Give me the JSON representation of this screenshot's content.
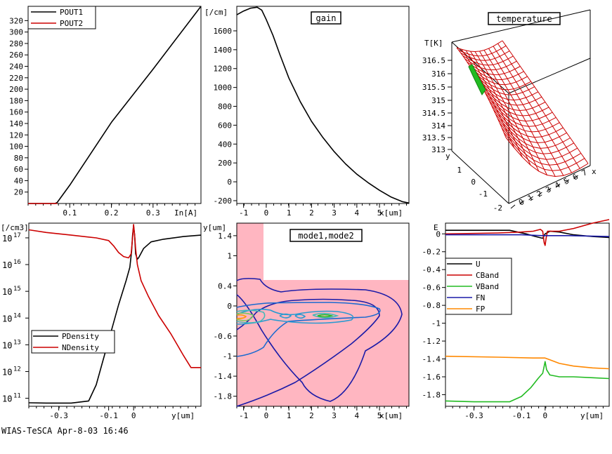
{
  "footer": "WIAS-TeSCA Apr-8-03 16:46",
  "colors": {
    "black": "#000000",
    "red": "#cc0000",
    "green": "#22bb22",
    "blue": "#1a1aa8",
    "orange": "#ff8800",
    "pink": "#ffb6c1"
  },
  "chart_data": [
    {
      "id": "power",
      "type": "line",
      "xlabel": "In[A]",
      "ylabel": "",
      "title": "",
      "xlim": [
        0,
        0.415
      ],
      "ylim": [
        0,
        345
      ],
      "xticks": [
        0.1,
        0.2,
        0.3
      ],
      "xtick_labels": [
        "0.1",
        "0.2",
        "0.3"
      ],
      "yticks": [
        20,
        40,
        60,
        80,
        100,
        120,
        140,
        160,
        180,
        200,
        220,
        240,
        260,
        280,
        300,
        320
      ],
      "ytick_labels": [
        "20",
        "40",
        "60",
        "80",
        "100",
        "120",
        "140",
        "160",
        "180",
        "200",
        "220",
        "240",
        "260",
        "280",
        "300",
        "320"
      ],
      "legend": "top-left",
      "series": [
        {
          "name": "POUT1",
          "color": "#000000",
          "x": [
            0,
            0.065,
            0.07,
            0.1,
            0.2,
            0.3,
            0.415
          ],
          "y": [
            0,
            0,
            2,
            32,
            142,
            235,
            345
          ]
        },
        {
          "name": "POUT2",
          "color": "#cc0000",
          "x": [
            0,
            0.07
          ],
          "y": [
            0,
            0
          ]
        }
      ]
    },
    {
      "id": "gain",
      "type": "line",
      "title": "gain",
      "xlabel": "x[um]",
      "ylabel": "[/cm]",
      "xlim": [
        -1.3,
        6.3
      ],
      "ylim": [
        -230,
        1860
      ],
      "xticks": [
        -1,
        0,
        1,
        2,
        3,
        4,
        5
      ],
      "xtick_labels": [
        "-1",
        "0",
        "1",
        "2",
        "3",
        "4",
        "5"
      ],
      "yticks": [
        -200,
        0,
        200,
        400,
        600,
        800,
        1000,
        1200,
        1400,
        1600
      ],
      "ytick_labels": [
        "-200",
        "0",
        "200",
        "400",
        "600",
        "800",
        "1000",
        "1200",
        "1400",
        "1600"
      ],
      "series": [
        {
          "name": "",
          "color": "#000000",
          "x": [
            -1.3,
            -1.0,
            -0.7,
            -0.4,
            -0.2,
            0.0,
            0.3,
            0.6,
            1.0,
            1.5,
            2.0,
            2.5,
            3.0,
            3.5,
            4.0,
            4.5,
            5.0,
            5.5,
            6.0,
            6.3
          ],
          "y": [
            1770,
            1810,
            1840,
            1850,
            1820,
            1720,
            1550,
            1350,
            1100,
            850,
            640,
            470,
            320,
            190,
            80,
            -10,
            -90,
            -160,
            -210,
            -225
          ]
        }
      ]
    },
    {
      "id": "temperature",
      "type": "surface3d",
      "title": "temperature",
      "zlabel": "T[K]",
      "ylabel": "y",
      "xlabel": "x",
      "zticks": [
        "313",
        "313.5",
        "314",
        "314.5",
        "315",
        "315.5",
        "316",
        "316.5"
      ],
      "xticks": [
        "0",
        "1",
        "2",
        "3",
        "4",
        "5",
        "6",
        "7"
      ],
      "yticks": [
        "-2",
        "-1",
        "0",
        "1"
      ],
      "zlim": [
        313,
        316.5
      ],
      "x_range": [
        -1,
        7.5
      ],
      "y_range": [
        -2,
        1.5
      ]
    },
    {
      "id": "density",
      "type": "line",
      "xlabel": "y[um]",
      "ylabel": "[/cm3]",
      "title": "",
      "yscale": "log",
      "xlim": [
        -0.42,
        0.27
      ],
      "ylim": [
        10.7,
        17.55
      ],
      "xticks": [
        -0.3,
        -0.1,
        0
      ],
      "xtick_labels": [
        "-0.3",
        "-0.1",
        "0"
      ],
      "yticks": [
        11,
        12,
        13,
        14,
        15,
        16,
        17
      ],
      "ytick_base": "10",
      "ytick_exponents": [
        "11",
        "12",
        "13",
        "14",
        "15",
        "16",
        "17"
      ],
      "legend": "bottom-left",
      "series": [
        {
          "name": "PDensity",
          "color": "#000000",
          "x": [
            -0.42,
            -0.35,
            -0.25,
            -0.18,
            -0.15,
            -0.12,
            -0.09,
            -0.06,
            -0.03,
            -0.015,
            -0.008,
            -0.004,
            0.0,
            0.004,
            0.008,
            0.015,
            0.02,
            0.04,
            0.07,
            0.12,
            0.2,
            0.27
          ],
          "y": [
            10.83,
            10.82,
            10.82,
            10.9,
            11.5,
            12.5,
            13.5,
            14.5,
            15.4,
            15.9,
            16.5,
            17.1,
            17.45,
            17.1,
            16.4,
            16.2,
            16.25,
            16.6,
            16.85,
            16.95,
            17.05,
            17.1
          ]
        },
        {
          "name": "NDensity",
          "color": "#cc0000",
          "x": [
            -0.42,
            -0.35,
            -0.25,
            -0.15,
            -0.1,
            -0.08,
            -0.06,
            -0.04,
            -0.02,
            -0.01,
            -0.004,
            0.0,
            0.004,
            0.008,
            0.015,
            0.03,
            0.06,
            0.1,
            0.15,
            0.2,
            0.23,
            0.27
          ],
          "y": [
            17.3,
            17.2,
            17.1,
            17.0,
            16.9,
            16.7,
            16.45,
            16.3,
            16.25,
            16.4,
            17.0,
            17.5,
            17.1,
            16.6,
            16.0,
            15.4,
            14.8,
            14.1,
            13.4,
            12.6,
            12.15,
            12.15
          ]
        }
      ]
    },
    {
      "id": "modes",
      "type": "contour",
      "title": "mode1,mode2",
      "xlabel": "x[um]",
      "ylabel": "y[um]",
      "xlim": [
        -1.3,
        6.3
      ],
      "ylim": [
        -2.0,
        1.65
      ],
      "xticks": [
        -1,
        0,
        1,
        2,
        3,
        4,
        5
      ],
      "xtick_labels": [
        "-1",
        "0",
        "1",
        "2",
        "3",
        "4",
        "5"
      ],
      "yticks": [
        1.4,
        1,
        0.4,
        0,
        -0.6,
        -1,
        -1.4,
        -1.8
      ],
      "ytick_labels": [
        "1.4",
        "1",
        "0.4",
        "0",
        "-0.6",
        "-1",
        "-1.4",
        "-1.8"
      ]
    },
    {
      "id": "bands",
      "type": "line",
      "xlabel": "y[um]",
      "ylabel": "E",
      "title": "",
      "xlim": [
        -0.42,
        0.27
      ],
      "ylim": [
        -1.93,
        0.12
      ],
      "xticks": [
        -0.3,
        -0.1,
        0
      ],
      "xtick_labels": [
        "-0.3",
        "-0.1",
        "0"
      ],
      "yticks": [
        0,
        -0.2,
        -0.4,
        -0.6,
        -0.8,
        -1,
        -1.2,
        -1.4,
        -1.6,
        -1.8
      ],
      "ytick_labels": [
        "0",
        "-0.2",
        "-0.4",
        "-0.6",
        "-0.8",
        "-1",
        "-1.2",
        "-1.4",
        "-1.6",
        "-1.8"
      ],
      "legend": "left",
      "series": [
        {
          "name": "U",
          "color": "#000000",
          "x": [
            -0.42,
            -0.2,
            -0.15,
            -0.08,
            -0.04,
            -0.01,
            0.0,
            0.02,
            0.06,
            0.12,
            0.2,
            0.27
          ],
          "y": [
            0.04,
            0.04,
            0.04,
            0.0,
            -0.03,
            -0.05,
            0.0,
            0.03,
            0.02,
            -0.01,
            -0.03,
            -0.04
          ]
        },
        {
          "name": "CBand",
          "color": "#cc0000",
          "x": [
            -0.42,
            -0.2,
            -0.1,
            -0.05,
            -0.02,
            -0.01,
            -0.004,
            0.0,
            0.004,
            0.01,
            0.03,
            0.06,
            0.12,
            0.2,
            0.27
          ],
          "y": [
            0.0,
            0.01,
            0.02,
            0.03,
            0.05,
            0.03,
            -0.1,
            -0.13,
            -0.05,
            0.03,
            0.03,
            0.03,
            0.06,
            0.12,
            0.16
          ]
        },
        {
          "name": "VBand",
          "color": "#22bb22",
          "x": [
            -0.42,
            -0.3,
            -0.15,
            -0.1,
            -0.06,
            -0.03,
            -0.01,
            -0.004,
            0.0,
            0.006,
            0.02,
            0.06,
            0.12,
            0.2,
            0.27
          ],
          "y": [
            -1.87,
            -1.88,
            -1.88,
            -1.82,
            -1.72,
            -1.62,
            -1.56,
            -1.48,
            -1.43,
            -1.52,
            -1.58,
            -1.6,
            -1.6,
            -1.61,
            -1.62
          ]
        },
        {
          "name": "FN",
          "color": "#1a1aa8",
          "x": [
            -0.42,
            -0.1,
            -0.01,
            0.0,
            0.01,
            0.1,
            0.27
          ],
          "y": [
            -0.01,
            -0.01,
            -0.02,
            -0.02,
            -0.02,
            -0.02,
            -0.03
          ]
        },
        {
          "name": "FP",
          "color": "#ff8800",
          "x": [
            -0.42,
            -0.2,
            -0.05,
            0.0,
            0.02,
            0.06,
            0.12,
            0.2,
            0.27
          ],
          "y": [
            -1.37,
            -1.38,
            -1.39,
            -1.39,
            -1.41,
            -1.45,
            -1.48,
            -1.5,
            -1.51
          ]
        }
      ]
    }
  ]
}
